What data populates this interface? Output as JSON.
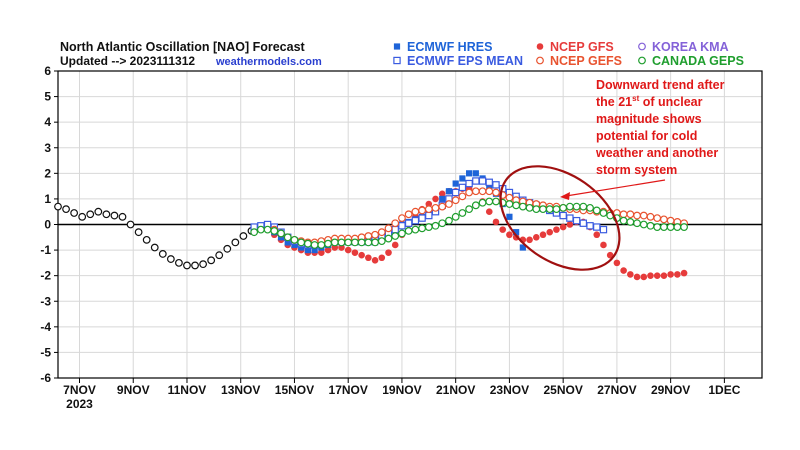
{
  "header": {
    "title": "North Atlantic Oscillation [NAO] Forecast",
    "updated": "Updated --> 2023111312",
    "site": "weathermodels.com"
  },
  "colors": {
    "ecmwf_hres": "#1e64d8",
    "ecmwf_eps": "#3a5be0",
    "gfs": "#e63b3b",
    "gefs": "#e8532f",
    "kma": "#8462d8",
    "geps": "#1f9e2e",
    "annotation": "#e01818",
    "ellipse": "#a01010"
  },
  "annotation": {
    "lines": [
      [
        "Downward trend after"
      ],
      [
        "the 21",
        "st",
        " of unclear"
      ],
      [
        "magnitude shows"
      ],
      [
        "potential for cold"
      ],
      [
        "weather and another"
      ],
      [
        "storm system"
      ]
    ]
  },
  "chart_data": {
    "type": "line",
    "title": "North Atlantic Oscillation [NAO] Forecast",
    "xlabel": "",
    "ylabel": "",
    "ylim": [
      -6,
      6
    ],
    "xlim": [
      6.2,
      32.4
    ],
    "yticks": [
      "6",
      "5",
      "4",
      "3",
      "2",
      "1",
      "0",
      "-1",
      "-2",
      "-3",
      "-4",
      "-5",
      "-6"
    ],
    "xticks": [
      {
        "label": "7NOV",
        "sub": "2023",
        "day": 7
      },
      {
        "label": "9NOV",
        "sub": "",
        "day": 9
      },
      {
        "label": "11NOV",
        "sub": "",
        "day": 11
      },
      {
        "label": "13NOV",
        "sub": "",
        "day": 13
      },
      {
        "label": "15NOV",
        "sub": "",
        "day": 15
      },
      {
        "label": "17NOV",
        "sub": "",
        "day": 17
      },
      {
        "label": "19NOV",
        "sub": "",
        "day": 19
      },
      {
        "label": "21NOV",
        "sub": "",
        "day": 21
      },
      {
        "label": "23NOV",
        "sub": "",
        "day": 23
      },
      {
        "label": "25NOV",
        "sub": "",
        "day": 25
      },
      {
        "label": "27NOV",
        "sub": "",
        "day": 27
      },
      {
        "label": "29NOV",
        "sub": "",
        "day": 29
      },
      {
        "label": "1DEC",
        "sub": "",
        "day": 31
      }
    ],
    "grid": true,
    "legend_position": "top-right",
    "series": [
      {
        "name": "ECMWF HRES",
        "marker": "square-filled",
        "x": [
          14,
          14.25,
          14.5,
          14.75,
          15,
          15.25,
          15.5,
          15.75,
          16,
          16.25,
          16.5,
          16.75,
          17,
          17.25,
          17.5,
          17.75,
          18,
          18.25,
          18.5,
          18.75,
          19,
          19.25,
          19.5,
          19.75,
          20,
          20.25,
          20.5,
          20.75,
          21,
          21.25,
          21.5,
          21.75,
          22,
          22.25,
          22.5,
          22.75,
          23,
          23.25,
          23.5
        ],
        "y": [
          -0.1,
          -0.3,
          -0.5,
          -0.7,
          -0.8,
          -0.9,
          -1.0,
          -1.0,
          -0.9,
          -0.8,
          -0.7,
          -0.7,
          -0.7,
          -0.7,
          -0.7,
          -0.7,
          -0.7,
          -0.6,
          -0.4,
          -0.2,
          0.0,
          0.1,
          0.2,
          0.3,
          0.4,
          0.6,
          1.0,
          1.3,
          1.6,
          1.8,
          2.0,
          2.0,
          1.8,
          1.5,
          1.2,
          0.8,
          0.3,
          -0.3,
          -0.9
        ]
      },
      {
        "name": "NCEP GFS",
        "marker": "circle-filled",
        "x": [
          14.25,
          14.5,
          14.75,
          15,
          15.25,
          15.5,
          15.75,
          16,
          16.25,
          16.5,
          16.75,
          17,
          17.25,
          17.5,
          17.75,
          18,
          18.25,
          18.5,
          18.75,
          19,
          19.25,
          19.5,
          19.75,
          20,
          20.25,
          20.5,
          20.75,
          21,
          21.25,
          21.5,
          21.75,
          22,
          22.25,
          22.5,
          22.75,
          23,
          23.25,
          23.5,
          23.75,
          24,
          24.25,
          24.5,
          24.75,
          25,
          25.25,
          25.5,
          25.75,
          26,
          26.25,
          26.5,
          26.75,
          27,
          27.25,
          27.5,
          27.75,
          28,
          28.25,
          28.5,
          28.75,
          29,
          29.25,
          29.5
        ],
        "y": [
          -0.4,
          -0.6,
          -0.8,
          -0.9,
          -1.0,
          -1.1,
          -1.1,
          -1.1,
          -1.0,
          -0.9,
          -0.9,
          -1.0,
          -1.1,
          -1.2,
          -1.3,
          -1.4,
          -1.3,
          -1.1,
          -0.8,
          -0.4,
          0.0,
          0.3,
          0.6,
          0.8,
          1.0,
          1.2,
          1.3,
          1.3,
          1.4,
          1.4,
          1.3,
          0.9,
          0.5,
          0.1,
          -0.2,
          -0.4,
          -0.5,
          -0.6,
          -0.6,
          -0.5,
          -0.4,
          -0.3,
          -0.2,
          -0.1,
          0.0,
          0.1,
          0.1,
          -0.1,
          -0.4,
          -0.8,
          -1.2,
          -1.5,
          -1.8,
          -1.95,
          -2.05,
          -2.05,
          -2.0,
          -2.0,
          -2.0,
          -1.95,
          -1.95,
          -1.9
        ]
      },
      {
        "name": "KOREA KMA",
        "marker": "circle-open",
        "x": [
          6.2,
          6.5,
          6.8,
          7.1,
          7.4,
          7.7,
          8,
          8.3,
          8.6,
          8.9,
          9.2,
          9.5,
          9.8,
          10.1,
          10.4,
          10.7,
          11,
          11.3,
          11.6,
          11.9,
          12.2,
          12.5,
          12.8,
          13.1,
          13.4,
          13.7,
          14
        ],
        "y": [
          0.7,
          0.6,
          0.45,
          0.3,
          0.4,
          0.5,
          0.4,
          0.35,
          0.3,
          0.0,
          -0.3,
          -0.6,
          -0.9,
          -1.15,
          -1.35,
          -1.5,
          -1.6,
          -1.6,
          -1.55,
          -1.4,
          -1.2,
          -0.95,
          -0.7,
          -0.45,
          -0.25,
          -0.15,
          -0.1
        ]
      },
      {
        "name": "ECMWF EPS MEAN",
        "marker": "square-open",
        "x": [
          13.5,
          13.75,
          14,
          14.25,
          14.5,
          14.75,
          15,
          15.25,
          15.5,
          15.75,
          16,
          16.25,
          16.5,
          16.75,
          17,
          17.25,
          17.5,
          17.75,
          18,
          18.25,
          18.5,
          18.75,
          19,
          19.25,
          19.5,
          19.75,
          20,
          20.25,
          20.5,
          20.75,
          21,
          21.25,
          21.5,
          21.75,
          22,
          22.25,
          22.5,
          22.75,
          23,
          23.25,
          23.5,
          23.75,
          24,
          24.25,
          24.5,
          24.75,
          25,
          25.25,
          25.5,
          25.75,
          26,
          26.25,
          26.5
        ],
        "y": [
          -0.1,
          -0.05,
          0.0,
          -0.1,
          -0.3,
          -0.5,
          -0.65,
          -0.75,
          -0.8,
          -0.8,
          -0.75,
          -0.7,
          -0.65,
          -0.65,
          -0.65,
          -0.65,
          -0.65,
          -0.65,
          -0.6,
          -0.5,
          -0.35,
          -0.2,
          -0.05,
          0.05,
          0.15,
          0.25,
          0.35,
          0.5,
          0.75,
          1.0,
          1.25,
          1.45,
          1.6,
          1.7,
          1.7,
          1.65,
          1.55,
          1.4,
          1.25,
          1.1,
          0.95,
          0.85,
          0.75,
          0.65,
          0.55,
          0.45,
          0.35,
          0.25,
          0.15,
          0.05,
          -0.05,
          -0.1,
          -0.2
        ]
      },
      {
        "name": "NCEP GEFS",
        "marker": "circle-open",
        "x": [
          14.25,
          14.5,
          14.75,
          15,
          15.25,
          15.5,
          15.75,
          16,
          16.25,
          16.5,
          16.75,
          17,
          17.25,
          17.5,
          17.75,
          18,
          18.25,
          18.5,
          18.75,
          19,
          19.25,
          19.5,
          19.75,
          20,
          20.25,
          20.5,
          20.75,
          21,
          21.25,
          21.5,
          21.75,
          22,
          22.25,
          22.5,
          22.75,
          23,
          23.25,
          23.5,
          23.75,
          24,
          24.25,
          24.5,
          24.75,
          25,
          25.25,
          25.5,
          25.75,
          26,
          26.25,
          26.5,
          26.75,
          27,
          27.25,
          27.5,
          27.75,
          28,
          28.25,
          28.5,
          28.75,
          29,
          29.25,
          29.5
        ],
        "y": [
          -0.2,
          -0.35,
          -0.5,
          -0.6,
          -0.65,
          -0.7,
          -0.7,
          -0.65,
          -0.6,
          -0.55,
          -0.55,
          -0.55,
          -0.55,
          -0.5,
          -0.45,
          -0.4,
          -0.3,
          -0.15,
          0.05,
          0.25,
          0.4,
          0.5,
          0.55,
          0.6,
          0.65,
          0.7,
          0.8,
          0.95,
          1.1,
          1.25,
          1.3,
          1.3,
          1.3,
          1.25,
          1.15,
          1.05,
          0.95,
          0.9,
          0.85,
          0.8,
          0.75,
          0.7,
          0.7,
          0.65,
          0.6,
          0.6,
          0.55,
          0.55,
          0.5,
          0.5,
          0.45,
          0.45,
          0.4,
          0.4,
          0.35,
          0.35,
          0.3,
          0.25,
          0.2,
          0.15,
          0.1,
          0.05
        ]
      },
      {
        "name": "CANADA GEPS",
        "marker": "circle-open",
        "x": [
          13.5,
          13.75,
          14,
          14.25,
          14.5,
          14.75,
          15,
          15.25,
          15.5,
          15.75,
          16,
          16.25,
          16.5,
          16.75,
          17,
          17.25,
          17.5,
          17.75,
          18,
          18.25,
          18.5,
          18.75,
          19,
          19.25,
          19.5,
          19.75,
          20,
          20.25,
          20.5,
          20.75,
          21,
          21.25,
          21.5,
          21.75,
          22,
          22.25,
          22.5,
          22.75,
          23,
          23.25,
          23.5,
          23.75,
          24,
          24.25,
          24.5,
          24.75,
          25,
          25.25,
          25.5,
          25.75,
          26,
          26.25,
          26.5,
          26.75,
          27,
          27.25,
          27.5,
          27.75,
          28,
          28.25,
          28.5,
          28.75,
          29,
          29.25,
          29.5
        ],
        "y": [
          -0.3,
          -0.2,
          -0.2,
          -0.25,
          -0.35,
          -0.5,
          -0.6,
          -0.7,
          -0.75,
          -0.8,
          -0.8,
          -0.75,
          -0.7,
          -0.7,
          -0.7,
          -0.7,
          -0.7,
          -0.7,
          -0.7,
          -0.65,
          -0.55,
          -0.45,
          -0.35,
          -0.25,
          -0.2,
          -0.15,
          -0.1,
          -0.05,
          0.05,
          0.15,
          0.3,
          0.45,
          0.6,
          0.75,
          0.85,
          0.9,
          0.9,
          0.85,
          0.8,
          0.75,
          0.7,
          0.65,
          0.6,
          0.6,
          0.6,
          0.6,
          0.65,
          0.7,
          0.7,
          0.7,
          0.65,
          0.55,
          0.45,
          0.35,
          0.25,
          0.15,
          0.1,
          0.05,
          0.0,
          -0.05,
          -0.1,
          -0.1,
          -0.1,
          -0.1,
          -0.1
        ]
      }
    ]
  }
}
